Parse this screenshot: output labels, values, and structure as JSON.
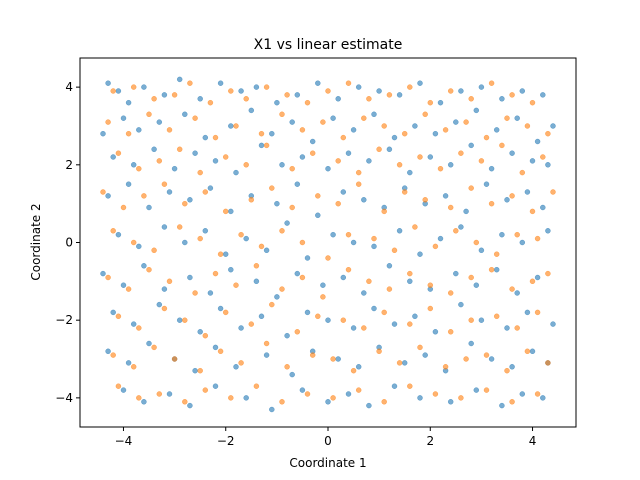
{
  "chart_data": {
    "type": "scatter",
    "title": "X1 vs linear estimate",
    "xlabel": "Coordinate 1",
    "ylabel": "Coordinate 2",
    "xlim": [
      -4.85,
      4.85
    ],
    "ylim": [
      -4.75,
      4.75
    ],
    "xticks": [
      -4,
      -2,
      0,
      2,
      4
    ],
    "yticks": [
      -4,
      -2,
      0,
      2,
      4
    ],
    "xtick_labels": [
      "−4",
      "−2",
      "0",
      "2",
      "4"
    ],
    "ytick_labels": [
      "−4",
      "−2",
      "0",
      "2",
      "4"
    ],
    "grid": false,
    "legend": "none",
    "point_opacity": 0.6,
    "series": [
      {
        "color": "#1f77b4",
        "x": [
          -4.3,
          -4.1,
          -3.9,
          -3.6,
          -3.2,
          -2.9,
          -2.5,
          -2.1,
          -1.7,
          -1.4,
          -1.0,
          -0.6,
          -0.2,
          0.2,
          0.6,
          1.0,
          1.4,
          1.8,
          2.2,
          2.6,
          3.0,
          3.4,
          3.8,
          4.2,
          -4.4,
          -4.0,
          -3.7,
          -3.3,
          -2.8,
          -2.4,
          -1.9,
          -1.5,
          -1.1,
          -0.7,
          -0.3,
          0.1,
          0.5,
          0.9,
          1.3,
          1.7,
          2.1,
          2.5,
          2.9,
          3.3,
          3.7,
          4.1,
          4.4,
          -4.2,
          -3.8,
          -3.4,
          -3.0,
          -2.6,
          -2.2,
          -1.8,
          -1.3,
          -0.9,
          -0.5,
          0.0,
          0.4,
          0.8,
          1.2,
          1.6,
          2.0,
          2.4,
          2.8,
          3.2,
          3.6,
          4.0,
          4.3,
          -4.3,
          -3.9,
          -3.5,
          -3.1,
          -2.7,
          -2.3,
          -1.9,
          -1.5,
          -1.0,
          -0.6,
          -0.2,
          0.3,
          0.7,
          1.1,
          1.5,
          1.9,
          2.3,
          2.7,
          3.1,
          3.5,
          3.9,
          4.2,
          -4.1,
          -3.7,
          -3.2,
          -2.8,
          -2.4,
          -2.0,
          -1.6,
          -1.2,
          -0.8,
          -0.4,
          0.1,
          0.5,
          0.9,
          1.4,
          1.8,
          2.2,
          2.6,
          3.0,
          3.4,
          3.8,
          4.3,
          -4.4,
          -4.0,
          -3.6,
          -3.2,
          -2.7,
          -2.3,
          -1.9,
          -1.4,
          -1.0,
          -0.6,
          -0.1,
          0.3,
          0.7,
          1.2,
          1.6,
          2.0,
          2.5,
          2.9,
          3.3,
          3.7,
          4.1,
          -4.2,
          -3.8,
          -3.3,
          -2.9,
          -2.5,
          -2.1,
          -1.7,
          -1.3,
          -0.8,
          -0.4,
          0.0,
          0.5,
          0.9,
          1.3,
          1.7,
          2.1,
          2.6,
          3.0,
          3.5,
          3.9,
          4.4,
          -4.3,
          -3.9,
          -3.5,
          -3.0,
          -2.6,
          -2.2,
          -1.8,
          -1.2,
          -0.7,
          -0.3,
          0.2,
          0.6,
          1.0,
          1.5,
          1.9,
          2.3,
          2.8,
          3.2,
          3.6,
          4.0,
          4.3,
          -4.0,
          -3.6,
          -3.1,
          -2.7,
          -2.2,
          -1.6,
          -1.1,
          -0.5,
          0.0,
          0.4,
          0.8,
          1.3,
          1.8,
          2.4,
          2.9,
          3.4,
          3.8,
          4.2
        ],
        "y": [
          4.1,
          3.9,
          3.6,
          4.0,
          3.8,
          4.2,
          3.7,
          4.1,
          3.9,
          4.0,
          3.6,
          3.8,
          4.1,
          3.7,
          4.0,
          3.9,
          3.8,
          4.1,
          3.6,
          3.9,
          4.0,
          3.7,
          3.9,
          3.8,
          2.8,
          3.2,
          2.9,
          3.1,
          3.3,
          2.7,
          3.0,
          3.4,
          2.8,
          3.1,
          2.6,
          3.2,
          2.9,
          3.3,
          2.7,
          3.0,
          2.8,
          3.1,
          3.4,
          2.9,
          3.2,
          2.6,
          3.0,
          2.2,
          2.0,
          2.4,
          1.9,
          2.3,
          2.1,
          1.8,
          2.5,
          2.0,
          2.2,
          1.9,
          2.3,
          2.1,
          2.4,
          1.8,
          2.2,
          2.0,
          2.5,
          1.9,
          2.3,
          2.1,
          2.0,
          1.2,
          1.5,
          0.9,
          1.3,
          1.1,
          1.4,
          0.8,
          1.2,
          1.0,
          1.5,
          0.7,
          1.3,
          1.1,
          0.9,
          1.4,
          1.0,
          1.2,
          0.8,
          1.5,
          1.1,
          1.3,
          0.9,
          0.2,
          -0.1,
          0.4,
          0.0,
          0.3,
          -0.3,
          0.1,
          -0.2,
          0.5,
          -0.4,
          0.2,
          0.0,
          -0.1,
          0.3,
          -0.3,
          0.1,
          0.4,
          -0.2,
          0.2,
          0.0,
          0.3,
          -0.8,
          -1.1,
          -0.6,
          -1.2,
          -0.9,
          -1.3,
          -0.7,
          -1.0,
          -1.4,
          -0.8,
          -1.1,
          -0.9,
          -1.3,
          -0.6,
          -1.0,
          -1.2,
          -0.8,
          -1.1,
          -0.7,
          -1.3,
          -0.9,
          -1.8,
          -2.1,
          -1.6,
          -2.0,
          -2.3,
          -1.7,
          -2.2,
          -1.9,
          -2.4,
          -1.8,
          -2.0,
          -2.2,
          -1.7,
          -2.1,
          -1.9,
          -2.3,
          -1.6,
          -2.0,
          -2.2,
          -1.8,
          -2.1,
          -2.8,
          -3.1,
          -2.6,
          -3.0,
          -3.3,
          -2.7,
          -3.2,
          -2.9,
          -3.4,
          -2.8,
          -3.0,
          -3.2,
          -2.7,
          -3.1,
          -2.9,
          -3.3,
          -2.6,
          -3.0,
          -3.2,
          -2.8,
          -3.1,
          -3.8,
          -4.1,
          -3.9,
          -4.2,
          -3.7,
          -4.0,
          -4.3,
          -3.8,
          -4.1,
          -3.9,
          -4.2,
          -3.7,
          -4.0,
          -4.1,
          -3.8,
          -4.2,
          -3.9,
          -4.0
        ]
      },
      {
        "color": "#ff7f0e",
        "x": [
          -4.2,
          -3.8,
          -3.4,
          -3.0,
          -2.7,
          -2.3,
          -1.9,
          -1.6,
          -1.2,
          -0.8,
          -0.4,
          0.0,
          0.4,
          0.8,
          1.2,
          1.6,
          2.0,
          2.4,
          2.8,
          3.2,
          3.6,
          4.0,
          -4.3,
          -3.9,
          -3.5,
          -3.1,
          -2.6,
          -2.2,
          -1.8,
          -1.3,
          -0.9,
          -0.5,
          -0.1,
          0.3,
          0.7,
          1.1,
          1.5,
          1.9,
          2.3,
          2.7,
          3.1,
          3.5,
          3.9,
          4.3,
          -4.1,
          -3.7,
          -3.3,
          -2.9,
          -2.5,
          -2.0,
          -1.6,
          -1.2,
          -0.7,
          -0.3,
          0.2,
          0.6,
          1.0,
          1.4,
          1.8,
          2.2,
          2.6,
          3.0,
          3.4,
          3.8,
          4.2,
          -4.4,
          -4.0,
          -3.6,
          -3.2,
          -2.8,
          -2.4,
          -2.0,
          -1.5,
          -1.1,
          -0.7,
          -0.2,
          0.2,
          0.6,
          1.1,
          1.5,
          1.9,
          2.4,
          2.8,
          3.2,
          3.6,
          4.0,
          4.4,
          -4.2,
          -3.8,
          -3.4,
          -2.9,
          -2.5,
          -2.1,
          -1.7,
          -1.3,
          -0.9,
          -0.5,
          0.0,
          0.4,
          0.9,
          1.3,
          1.7,
          2.1,
          2.5,
          2.9,
          3.3,
          3.7,
          4.1,
          -4.3,
          -3.9,
          -3.5,
          -3.1,
          -2.6,
          -2.2,
          -1.8,
          -1.4,
          -0.9,
          -0.5,
          -0.1,
          0.4,
          0.8,
          1.2,
          1.6,
          2.0,
          2.4,
          2.8,
          3.2,
          3.6,
          4.0,
          4.3,
          -4.1,
          -3.7,
          -3.2,
          -2.8,
          -2.4,
          -2.0,
          -1.5,
          -1.1,
          -0.6,
          -0.2,
          0.3,
          0.7,
          1.1,
          1.6,
          2.0,
          2.4,
          2.8,
          3.3,
          3.7,
          4.1,
          -4.2,
          -3.8,
          -3.4,
          -3.0,
          -2.5,
          -2.1,
          -1.7,
          -1.2,
          -0.8,
          -0.3,
          0.1,
          0.5,
          1.0,
          1.4,
          1.8,
          2.3,
          2.7,
          3.1,
          3.5,
          3.9,
          4.3,
          -4.1,
          -3.7,
          -3.3,
          -2.8,
          -2.4,
          -1.9,
          -1.4,
          -0.9,
          -0.4,
          0.1,
          0.6,
          1.1,
          1.6,
          2.1,
          2.6,
          3.1,
          3.6,
          4.1
        ],
        "y": [
          3.9,
          4.0,
          3.7,
          3.8,
          4.1,
          3.6,
          3.9,
          3.7,
          4.0,
          3.8,
          3.6,
          3.9,
          4.1,
          3.7,
          3.8,
          4.0,
          3.6,
          3.9,
          3.7,
          4.1,
          3.8,
          3.6,
          3.1,
          2.8,
          3.3,
          2.9,
          3.2,
          2.7,
          3.0,
          2.8,
          3.3,
          2.9,
          3.1,
          2.7,
          3.2,
          3.0,
          2.8,
          3.3,
          2.9,
          3.1,
          2.7,
          3.2,
          3.0,
          2.8,
          2.3,
          1.9,
          2.1,
          2.4,
          1.8,
          2.2,
          2.0,
          2.5,
          1.9,
          2.3,
          2.1,
          1.8,
          2.4,
          2.0,
          2.2,
          1.9,
          2.3,
          2.1,
          2.5,
          1.8,
          2.2,
          1.3,
          0.9,
          1.2,
          1.5,
          1.0,
          1.3,
          0.8,
          1.1,
          1.4,
          0.9,
          1.2,
          1.0,
          1.5,
          0.8,
          1.3,
          1.1,
          0.9,
          1.4,
          1.0,
          1.2,
          0.8,
          1.3,
          0.3,
          0.0,
          -0.2,
          0.4,
          0.1,
          -0.3,
          0.2,
          -0.1,
          0.3,
          0.0,
          -0.4,
          0.2,
          0.1,
          -0.2,
          0.4,
          -0.1,
          0.3,
          0.0,
          -0.3,
          0.2,
          0.1,
          -0.9,
          -1.2,
          -0.7,
          -1.0,
          -1.3,
          -0.8,
          -1.1,
          -0.6,
          -1.2,
          -0.9,
          -1.4,
          -0.7,
          -1.0,
          -1.2,
          -0.8,
          -1.1,
          -1.3,
          -0.9,
          -0.7,
          -1.2,
          -1.0,
          -0.8,
          -1.9,
          -2.2,
          -1.7,
          -2.0,
          -2.4,
          -1.8,
          -2.1,
          -1.6,
          -2.3,
          -1.9,
          -2.0,
          -2.2,
          -1.8,
          -2.1,
          -1.7,
          -2.3,
          -2.0,
          -1.9,
          -2.2,
          -1.8,
          -2.9,
          -3.2,
          -2.7,
          -3.0,
          -3.3,
          -2.8,
          -3.1,
          -2.6,
          -3.2,
          -2.9,
          -3.0,
          -3.3,
          -2.8,
          -3.1,
          -2.7,
          -3.2,
          -3.0,
          -2.9,
          -3.3,
          -2.8,
          -3.1,
          -3.7,
          -4.0,
          -3.9,
          -4.1,
          -3.8,
          -4.0,
          -3.7,
          -4.1,
          -3.9,
          -4.0,
          -3.8,
          -4.1,
          -3.7,
          -3.9,
          -4.0,
          -3.8,
          -4.1,
          -3.9
        ]
      }
    ]
  }
}
